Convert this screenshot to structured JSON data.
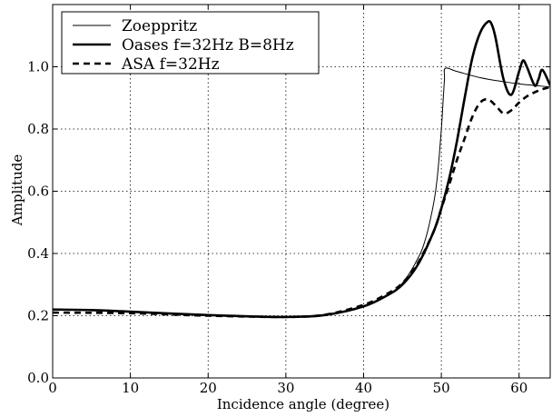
{
  "chart_data": {
    "type": "line",
    "title": "",
    "xlabel": "Incidence angle (degree)",
    "ylabel": "Amplitude",
    "xlim": [
      0,
      64
    ],
    "ylim": [
      0,
      1.2
    ],
    "x_ticks": [
      0,
      10,
      20,
      30,
      40,
      50,
      60
    ],
    "y_ticks": [
      0.0,
      0.2,
      0.4,
      0.6,
      0.8,
      1.0
    ],
    "x_tick_labels": [
      "0",
      "10",
      "20",
      "30",
      "40",
      "50",
      "60"
    ],
    "y_tick_labels": [
      "0.0",
      "0.2",
      "0.4",
      "0.6",
      "0.8",
      "1.0"
    ],
    "grid": true,
    "legend_position": "top-left",
    "series": [
      {
        "name": "Zoeppritz",
        "style": "thin-solid",
        "color": "#000000",
        "x": [
          0,
          10,
          20,
          30,
          35,
          40,
          43,
          45,
          47,
          48,
          49,
          49.5,
          50,
          50.2,
          50.4,
          50.5,
          52,
          55,
          58,
          60,
          62,
          64
        ],
        "y": [
          0.22,
          0.213,
          0.202,
          0.196,
          0.202,
          0.229,
          0.265,
          0.305,
          0.385,
          0.45,
          0.56,
          0.65,
          0.8,
          0.88,
          0.96,
          0.995,
          0.985,
          0.965,
          0.952,
          0.945,
          0.94,
          0.935
        ]
      },
      {
        "name": "Oases f=32Hz B=8Hz",
        "style": "thick-solid",
        "color": "#000000",
        "x": [
          0,
          5,
          10,
          15,
          20,
          25,
          30,
          35,
          40,
          43,
          45,
          47,
          49,
          50,
          51,
          52,
          53,
          54,
          55,
          56,
          56.5,
          57,
          58,
          59,
          60,
          60.5,
          61,
          62,
          62.5,
          63,
          64
        ],
        "y": [
          0.22,
          0.218,
          0.213,
          0.207,
          0.202,
          0.198,
          0.196,
          0.202,
          0.23,
          0.265,
          0.3,
          0.365,
          0.47,
          0.545,
          0.64,
          0.76,
          0.9,
          1.03,
          1.11,
          1.145,
          1.135,
          1.09,
          0.96,
          0.91,
          0.985,
          1.02,
          1.0,
          0.94,
          0.96,
          0.99,
          0.94
        ]
      },
      {
        "name": "ASA f=32Hz",
        "style": "thick-dashed",
        "color": "#000000",
        "x": [
          0,
          10,
          20,
          30,
          35,
          40,
          43,
          45,
          47,
          49,
          50,
          51,
          52,
          53,
          54,
          55,
          56,
          57,
          58,
          59,
          60,
          61,
          62,
          63,
          64
        ],
        "y": [
          0.21,
          0.208,
          0.2,
          0.196,
          0.203,
          0.235,
          0.27,
          0.305,
          0.37,
          0.47,
          0.545,
          0.62,
          0.7,
          0.77,
          0.84,
          0.885,
          0.895,
          0.875,
          0.85,
          0.86,
          0.885,
          0.905,
          0.918,
          0.928,
          0.935
        ]
      }
    ]
  }
}
